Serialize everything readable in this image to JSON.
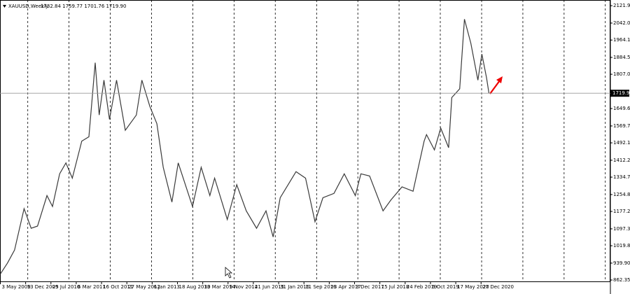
{
  "chart_data": {
    "type": "line",
    "title": "XAUUSD,Weekly",
    "ohlc": "1732.84 1759.77 1701.76 1719.90",
    "current_price": 1719.9,
    "current_price_label": "1719.90",
    "x": [
      "2009-05-03",
      "2009-07-05",
      "2009-09-06",
      "2009-11-29",
      "2010-01-31",
      "2010-03-28",
      "2010-06-20",
      "2010-08-08",
      "2010-10-10",
      "2010-12-05",
      "2011-01-30",
      "2011-04-24",
      "2011-06-26",
      "2011-08-21",
      "2011-09-25",
      "2011-11-06",
      "2011-12-25",
      "2012-02-26",
      "2012-05-13",
      "2012-08-19",
      "2012-10-07",
      "2012-12-16",
      "2013-02-17",
      "2013-04-14",
      "2013-06-30",
      "2013-08-25",
      "2013-12-29",
      "2014-03-16",
      "2014-06-01",
      "2014-07-13",
      "2014-11-02",
      "2015-01-25",
      "2015-04-19",
      "2015-07-19",
      "2015-10-11",
      "2015-12-13",
      "2016-02-14",
      "2016-07-03",
      "2016-09-25",
      "2016-12-18",
      "2017-02-26",
      "2017-06-04",
      "2017-09-03",
      "2017-12-10",
      "2018-01-28",
      "2018-04-15",
      "2018-08-12",
      "2018-10-21",
      "2019-01-27",
      "2019-05-05",
      "2019-08-11",
      "2019-09-01",
      "2019-11-10",
      "2020-01-05",
      "2020-03-15",
      "2020-04-12",
      "2020-06-21",
      "2020-08-02",
      "2020-09-27",
      "2020-11-29",
      "2021-01-03",
      "2021-02-14",
      "2021-03-07"
    ],
    "series": [
      {
        "name": "XAUUSD",
        "color": "#3a3a3a",
        "values": [
          890,
          940,
          1000,
          1190,
          1100,
          1110,
          1250,
          1200,
          1350,
          1400,
          1330,
          1500,
          1520,
          1860,
          1620,
          1780,
          1600,
          1780,
          1550,
          1620,
          1780,
          1660,
          1580,
          1380,
          1220,
          1400,
          1200,
          1380,
          1250,
          1330,
          1140,
          1300,
          1180,
          1100,
          1180,
          1060,
          1240,
          1360,
          1330,
          1130,
          1240,
          1260,
          1350,
          1250,
          1350,
          1340,
          1180,
          1230,
          1290,
          1270,
          1500,
          1530,
          1460,
          1560,
          1470,
          1700,
          1740,
          2060,
          1950,
          1780,
          1900,
          1790,
          1719.9
        ]
      }
    ],
    "xlim": [
      "2009-04-30",
      "2024-02-15"
    ],
    "xticks": [
      {
        "value": "2009-05-03",
        "label": "3 May 2009"
      },
      {
        "value": "2009-12-13",
        "label": "13 Dec 2009"
      },
      {
        "value": "2010-07-25",
        "label": "25 Jul 2010"
      },
      {
        "value": "2011-03-06",
        "label": "6 Mar 2011"
      },
      {
        "value": "2011-10-16",
        "label": "16 Oct 2011"
      },
      {
        "value": "2012-05-27",
        "label": "27 May 2012"
      },
      {
        "value": "2013-01-06",
        "label": "6 Jan 2013"
      },
      {
        "value": "2013-08-18",
        "label": "18 Aug 2013"
      },
      {
        "value": "2014-03-30",
        "label": "30 Mar 2014"
      },
      {
        "value": "2014-11-09",
        "label": "9 Nov 2014"
      },
      {
        "value": "2015-06-21",
        "label": "21 Jun 2015"
      },
      {
        "value": "2016-01-31",
        "label": "31 Jan 2016"
      },
      {
        "value": "2016-09-11",
        "label": "11 Sep 2016"
      },
      {
        "value": "2017-04-23",
        "label": "23 Apr 2017"
      },
      {
        "value": "2017-12-03",
        "label": "3 Dec 2017"
      },
      {
        "value": "2018-07-15",
        "label": "15 Jul 2018"
      },
      {
        "value": "2019-02-24",
        "label": "24 Feb 2019"
      },
      {
        "value": "2019-10-06",
        "label": "6 Oct 2019"
      },
      {
        "value": "2020-05-17",
        "label": "17 May 2020"
      },
      {
        "value": "2020-12-27",
        "label": "27 Dec 2020"
      }
    ],
    "xgrid": [
      "2010-01-01",
      "2011-01-01",
      "2012-01-01",
      "2013-01-01",
      "2014-01-01",
      "2015-01-01",
      "2016-01-01",
      "2017-01-01",
      "2018-01-01",
      "2019-01-01",
      "2020-01-01",
      "2021-01-01",
      "2022-01-01",
      "2023-01-01",
      "2024-01-01"
    ],
    "ylim": [
      856,
      2148
    ],
    "yticks": [
      2121.95,
      2042.05,
      1964.15,
      {
        "value": 1884.5,
        "label": "1884.50"
      },
      1807.05,
      1649.65,
      {
        "value": 1569.7,
        "label": "1569.70"
      },
      1492.15,
      1412.25,
      {
        "value": 1334.7,
        "label": "1334.70"
      },
      {
        "value": 1254.8,
        "label": "1254.80"
      },
      1177.25,
      1097.35,
      {
        "value": 1019.8,
        "label": "1019.80"
      },
      {
        "value": 939.9,
        "label": "939.90"
      },
      862.35
    ],
    "grid": true
  }
}
